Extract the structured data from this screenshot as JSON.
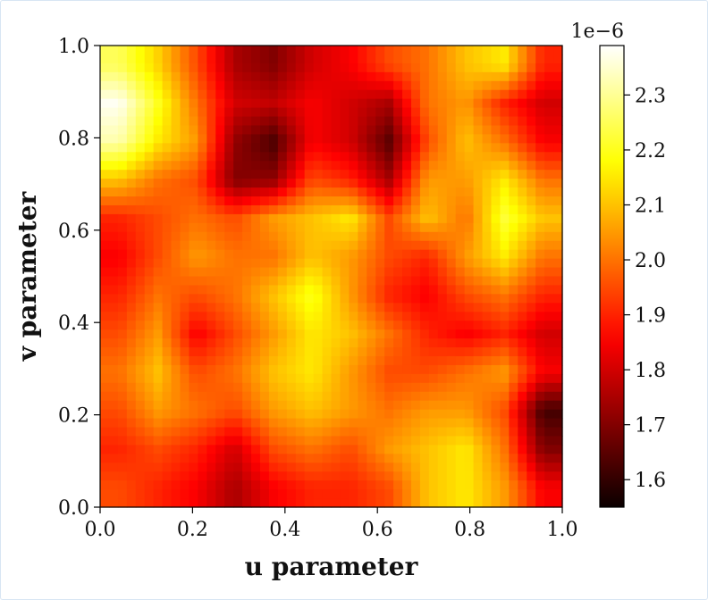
{
  "chart_data": {
    "type": "heatmap",
    "title": "",
    "xlabel": "u parameter",
    "ylabel": "v parameter",
    "xlim": [
      0.0,
      1.0
    ],
    "ylim": [
      0.0,
      1.0
    ],
    "x_ticks": [
      "0.0",
      "0.2",
      "0.4",
      "0.6",
      "0.8",
      "1.0"
    ],
    "y_ticks": [
      "0.0",
      "0.2",
      "0.4",
      "0.6",
      "0.8",
      "1.0"
    ],
    "x_tick_values": [
      0.0,
      0.2,
      0.4,
      0.6,
      0.8,
      1.0
    ],
    "y_tick_values": [
      0.0,
      0.2,
      0.4,
      0.6,
      0.8,
      1.0
    ],
    "grid": false,
    "legend": "none",
    "colormap": "hot",
    "colorbar": {
      "range": [
        1.55,
        2.39
      ],
      "ticks": [
        "1.6",
        "1.7",
        "1.8",
        "1.9",
        "2.0",
        "2.1",
        "2.2",
        "2.3"
      ],
      "tick_values": [
        1.6,
        1.7,
        1.8,
        1.9,
        2.0,
        2.1,
        2.2,
        2.3
      ],
      "offset_label": "1e−6"
    },
    "rows_top_to_bottom": [
      [
        2.25,
        2.12,
        1.95,
        1.75,
        1.7,
        1.8,
        1.85,
        1.95,
        2.0,
        2.1,
        2.15,
        1.9
      ],
      [
        2.38,
        2.2,
        2.0,
        1.8,
        1.78,
        1.85,
        1.8,
        1.75,
        2.0,
        2.05,
        1.9,
        1.8
      ],
      [
        2.32,
        2.15,
        2.05,
        1.72,
        1.63,
        1.85,
        1.8,
        1.65,
        1.95,
        2.1,
        2.0,
        1.85
      ],
      [
        2.1,
        2.0,
        1.95,
        1.7,
        1.72,
        1.95,
        1.9,
        1.75,
        2.05,
        2.05,
        2.15,
        2.0
      ],
      [
        1.9,
        1.95,
        2.0,
        1.95,
        2.05,
        2.1,
        2.15,
        1.95,
        2.1,
        2.0,
        2.22,
        2.1
      ],
      [
        1.85,
        1.95,
        2.05,
        2.0,
        2.0,
        2.1,
        2.05,
        1.95,
        1.9,
        2.05,
        2.15,
        2.0
      ],
      [
        1.9,
        2.0,
        1.95,
        2.0,
        2.1,
        2.2,
        2.05,
        1.9,
        1.85,
        1.95,
        2.0,
        1.9
      ],
      [
        1.95,
        2.05,
        1.85,
        1.95,
        2.05,
        2.15,
        2.1,
        2.0,
        1.9,
        1.85,
        1.9,
        1.8
      ],
      [
        2.0,
        2.1,
        1.95,
        2.0,
        2.1,
        2.15,
        2.05,
        1.95,
        1.95,
        2.0,
        2.05,
        1.85
      ],
      [
        1.95,
        2.05,
        2.0,
        1.95,
        2.05,
        2.1,
        2.05,
        2.0,
        2.05,
        2.05,
        1.95,
        1.62
      ],
      [
        1.9,
        1.95,
        1.9,
        1.8,
        1.95,
        2.0,
        1.95,
        2.05,
        2.1,
        2.15,
        2.0,
        1.7
      ],
      [
        1.95,
        1.9,
        1.85,
        1.75,
        1.85,
        1.9,
        1.9,
        1.95,
        2.1,
        2.15,
        2.05,
        1.85
      ]
    ]
  }
}
